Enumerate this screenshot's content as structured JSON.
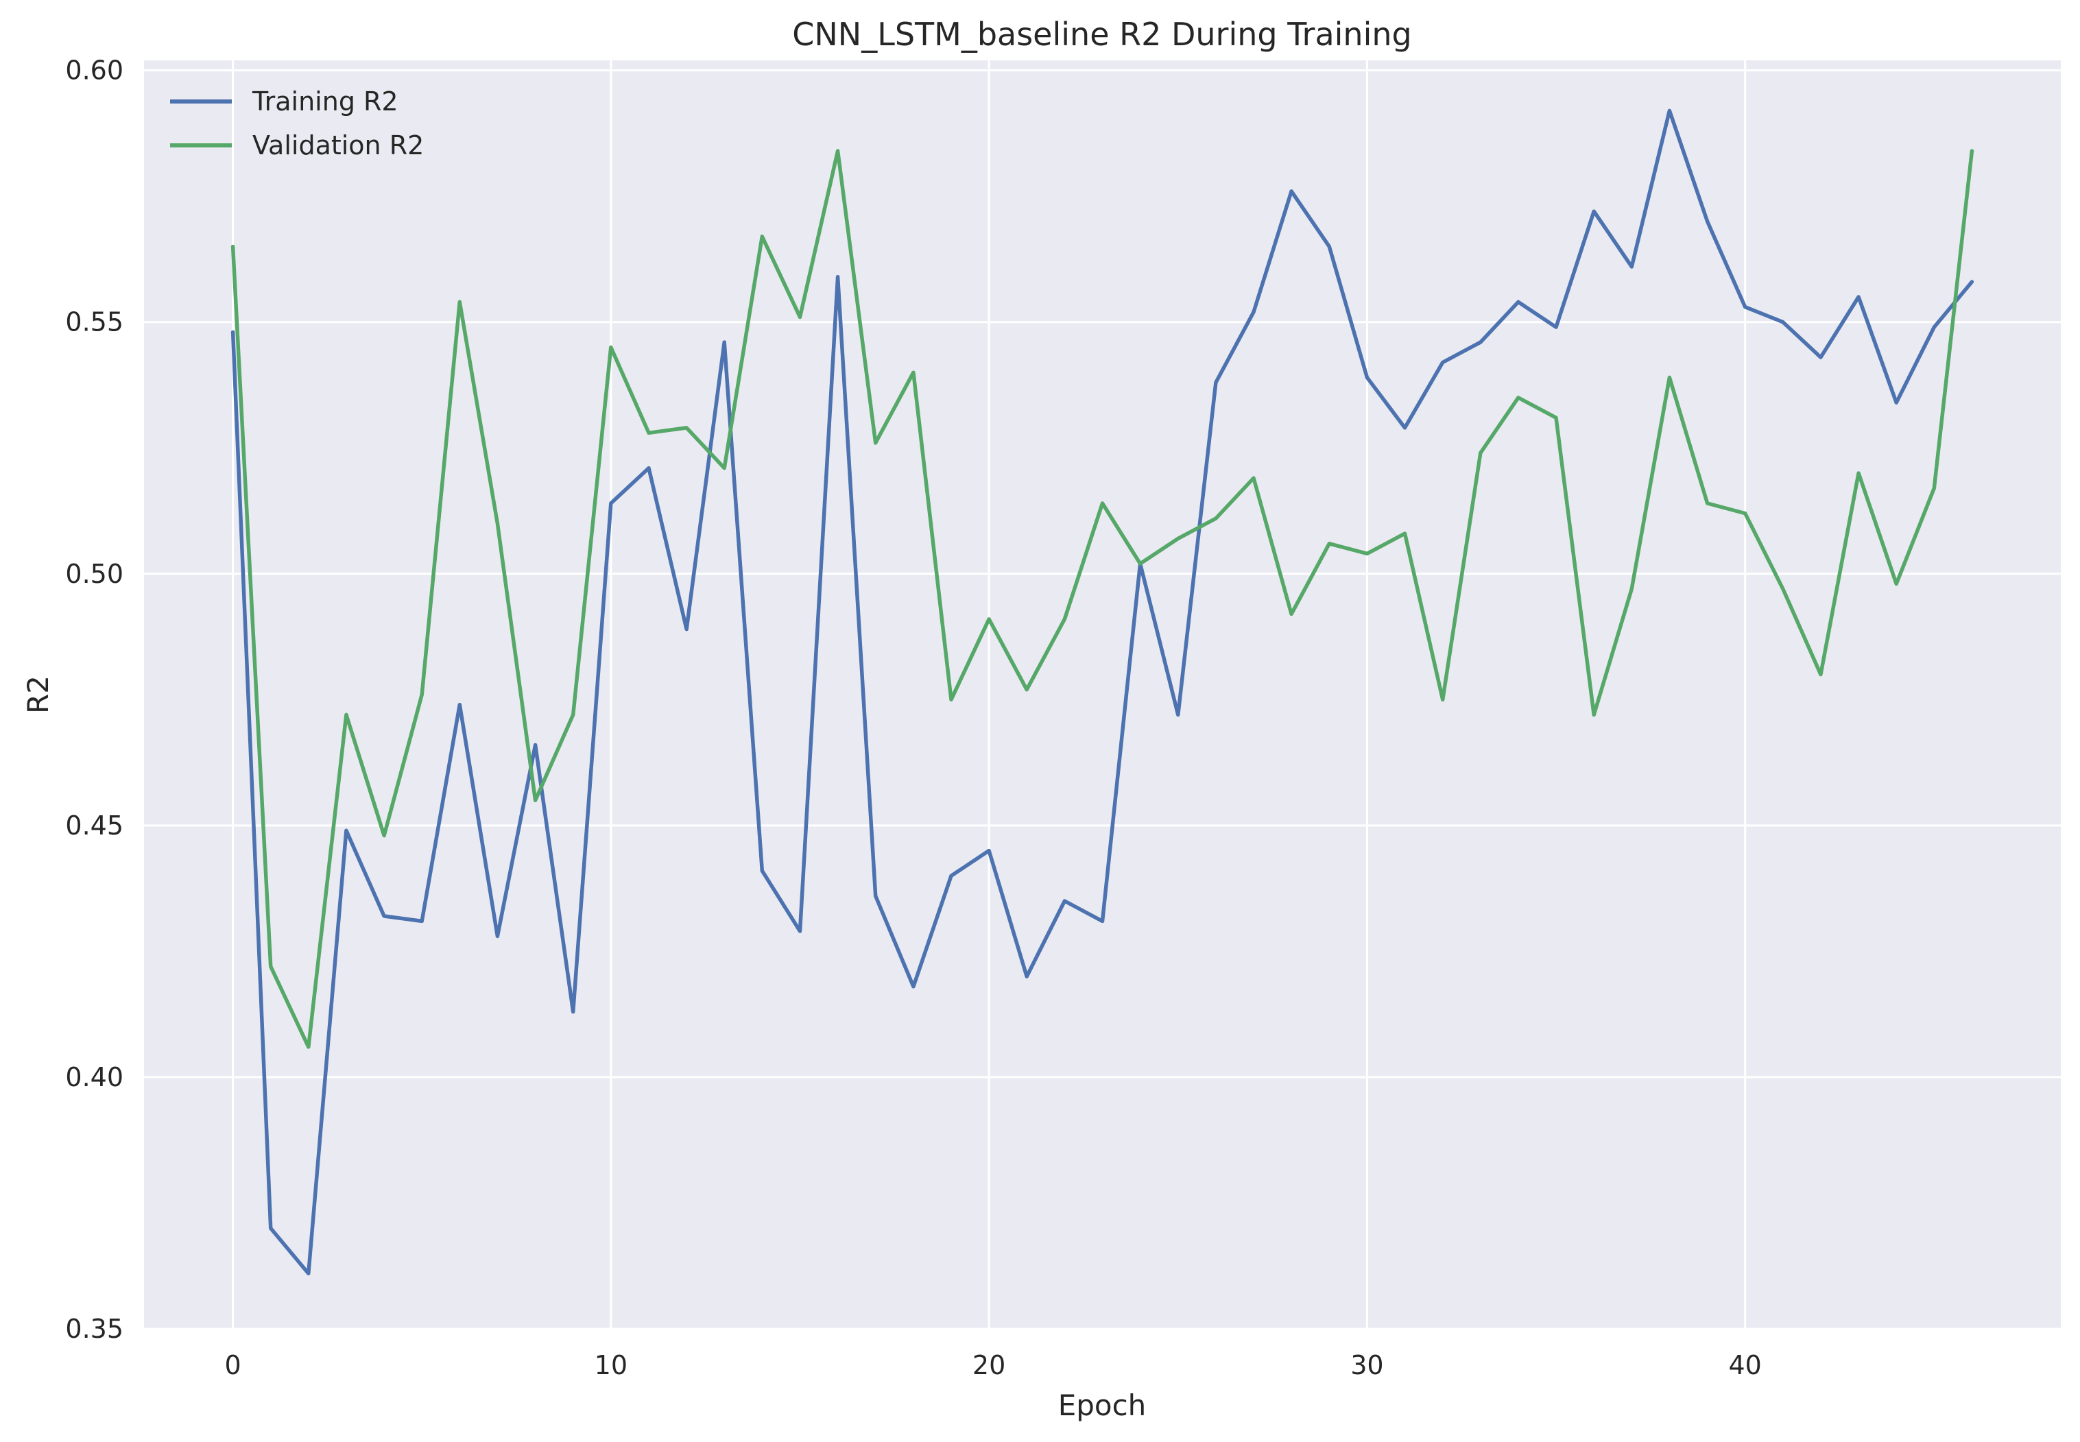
{
  "chart_data": {
    "type": "line",
    "title": "CNN_LSTM_baseline R2 During Training",
    "xlabel": "Epoch",
    "ylabel": "R2",
    "xlim": [
      -2.35,
      48.35
    ],
    "ylim": [
      0.35,
      0.602
    ],
    "xticks": [
      0,
      10,
      20,
      30,
      40
    ],
    "xtick_labels": [
      "0",
      "10",
      "20",
      "30",
      "40"
    ],
    "yticks": [
      0.35,
      0.4,
      0.45,
      0.5,
      0.55,
      0.6
    ],
    "ytick_labels": [
      "0.35",
      "0.40",
      "0.45",
      "0.50",
      "0.55",
      "0.60"
    ],
    "grid": true,
    "legend_position": "top-left",
    "x": [
      0,
      1,
      2,
      3,
      4,
      5,
      6,
      7,
      8,
      9,
      10,
      11,
      12,
      13,
      14,
      15,
      16,
      17,
      18,
      19,
      20,
      21,
      22,
      23,
      24,
      25,
      26,
      27,
      28,
      29,
      30,
      31,
      32,
      33,
      34,
      35,
      36,
      37,
      38,
      39,
      40,
      41,
      42,
      43,
      44,
      45,
      46
    ],
    "series": [
      {
        "name": "Training R2",
        "color": "#4c72b0",
        "values": [
          0.548,
          0.37,
          0.361,
          0.449,
          0.432,
          0.431,
          0.474,
          0.428,
          0.466,
          0.413,
          0.514,
          0.521,
          0.489,
          0.546,
          0.441,
          0.429,
          0.559,
          0.436,
          0.418,
          0.44,
          0.445,
          0.42,
          0.435,
          0.431,
          0.502,
          0.472,
          0.538,
          0.552,
          0.576,
          0.565,
          0.539,
          0.529,
          0.542,
          0.546,
          0.554,
          0.549,
          0.572,
          0.561,
          0.592,
          0.57,
          0.553,
          0.55,
          0.543,
          0.555,
          0.534,
          0.549,
          0.558
        ]
      },
      {
        "name": "Validation R2",
        "color": "#55a868",
        "values": [
          0.565,
          0.422,
          0.406,
          0.472,
          0.448,
          0.476,
          0.554,
          0.51,
          0.455,
          0.472,
          0.545,
          0.528,
          0.529,
          0.521,
          0.567,
          0.551,
          0.584,
          0.526,
          0.54,
          0.475,
          0.491,
          0.477,
          0.491,
          0.514,
          0.502,
          0.507,
          0.511,
          0.519,
          0.492,
          0.506,
          0.504,
          0.508,
          0.475,
          0.524,
          0.535,
          0.531,
          0.472,
          0.497,
          0.539,
          0.514,
          0.512,
          0.497,
          0.48,
          0.52,
          0.498,
          0.517,
          0.584
        ]
      }
    ],
    "colors": {
      "plot_background": "#eaeaf2",
      "grid": "#ffffff"
    }
  }
}
